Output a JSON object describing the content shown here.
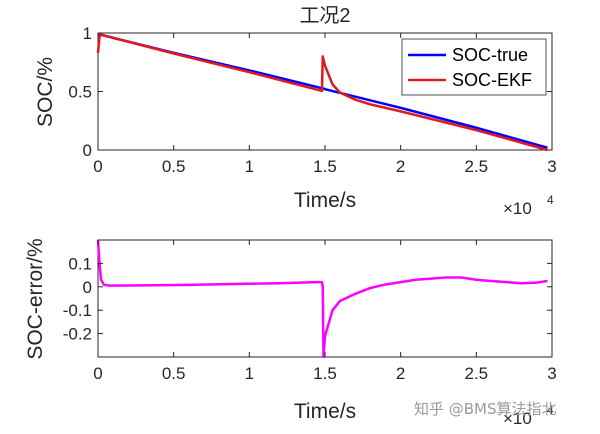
{
  "chart_data": [
    {
      "type": "line",
      "title": "工况2",
      "xlabel": "Time/s",
      "ylabel": "SOC/%",
      "xlim": [
        0,
        3
      ],
      "ylim": [
        0,
        1
      ],
      "x_multiplier_label": "×10",
      "x_multiplier_exponent": "4",
      "xticks": [
        0,
        0.5,
        1,
        1.5,
        2,
        2.5,
        3
      ],
      "xtick_labels": [
        "0",
        "0.5",
        "1",
        "1.5",
        "2",
        "2.5",
        "3"
      ],
      "yticks": [
        0,
        0.5,
        1
      ],
      "ytick_labels": [
        "0",
        "0.5",
        "1"
      ],
      "legend": {
        "position": "top-right",
        "entries": [
          "SOC-true",
          "SOC-EKF"
        ]
      },
      "series": [
        {
          "name": "SOC-true",
          "color": "#0000ff",
          "x": [
            0,
            0.02,
            0.5,
            1.0,
            1.49,
            1.5,
            2.0,
            2.5,
            2.97
          ],
          "y": [
            0.98,
            0.985,
            0.83,
            0.68,
            0.525,
            0.52,
            0.36,
            0.19,
            0.02
          ]
        },
        {
          "name": "SOC-EKF",
          "color": "#e31a1c",
          "x": [
            0,
            0.01,
            0.02,
            0.05,
            0.5,
            1.0,
            1.48,
            1.485,
            1.5,
            1.55,
            1.6,
            1.7,
            1.8,
            2.0,
            2.5,
            2.97
          ],
          "y": [
            0.83,
            0.97,
            0.985,
            0.975,
            0.825,
            0.665,
            0.505,
            0.8,
            0.72,
            0.56,
            0.49,
            0.43,
            0.39,
            0.33,
            0.17,
            0.0
          ]
        }
      ]
    },
    {
      "type": "line",
      "title": "",
      "xlabel": "Time/s",
      "ylabel": "SOC-error/%",
      "xlim": [
        0,
        3
      ],
      "ylim": [
        -0.3,
        0.2
      ],
      "x_multiplier_label": "×10",
      "x_multiplier_exponent": "4",
      "xticks": [
        0,
        0.5,
        1,
        1.5,
        2,
        2.5,
        3
      ],
      "xtick_labels": [
        "0",
        "0.5",
        "1",
        "1.5",
        "2",
        "2.5",
        "3"
      ],
      "yticks": [
        -0.2,
        -0.1,
        0,
        0.1
      ],
      "ytick_labels": [
        "-0.2",
        "-0.1",
        "0",
        "0.1"
      ],
      "series": [
        {
          "name": "SOC-error",
          "color": "#ff00ff",
          "x": [
            0,
            0.01,
            0.02,
            0.04,
            0.08,
            0.3,
            0.6,
            0.9,
            1.2,
            1.45,
            1.48,
            1.485,
            1.49,
            1.5,
            1.55,
            1.6,
            1.7,
            1.8,
            1.9,
            2.0,
            2.1,
            2.2,
            2.3,
            2.4,
            2.5,
            2.6,
            2.7,
            2.8,
            2.9,
            2.97
          ],
          "y": [
            0.2,
            0.1,
            0.03,
            0.008,
            0.005,
            0.006,
            0.008,
            0.012,
            0.015,
            0.02,
            0.02,
            0.0,
            -0.3,
            -0.21,
            -0.1,
            -0.06,
            -0.03,
            -0.005,
            0.01,
            0.02,
            0.03,
            0.035,
            0.04,
            0.04,
            0.03,
            0.025,
            0.02,
            0.015,
            0.018,
            0.025
          ]
        }
      ]
    }
  ],
  "watermark": "知乎 @BMS算法指北"
}
